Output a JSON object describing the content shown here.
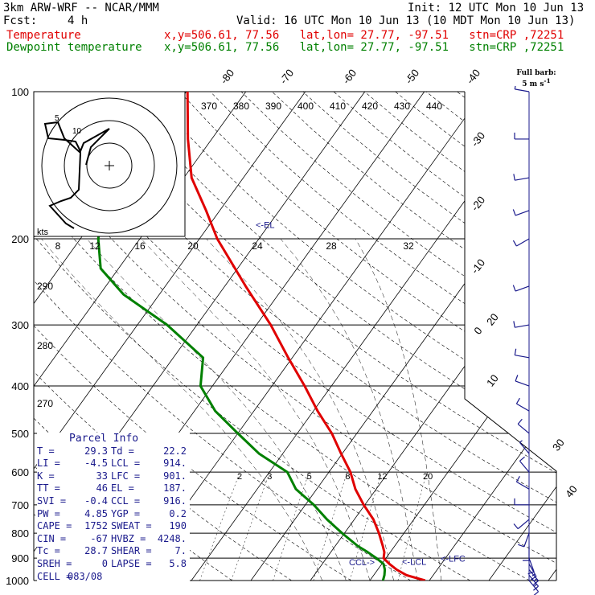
{
  "header": {
    "model": "3km ARW-WRF -- NCAR/MMM",
    "init": "Init: 12 UTC Mon 10 Jun 13",
    "fcst_label": "Fcst:",
    "fcst_value": "4 h",
    "valid": "Valid: 16 UTC Mon 10 Jun 13 (10 MDT Mon 10 Jun 13)",
    "temp_label": "Temperature",
    "temp_info": "x,y=506.61, 77.56   lat,lon= 27.77, -97.51   stn=CRP ,72251",
    "dew_label": "Dewpoint temperature",
    "dew_info": "x,y=506.61, 77.56   lat,lon= 27.77, -97.51   stn=CRP ,72251"
  },
  "full_barb": {
    "line1": "Full barb:",
    "line2": "5 m s",
    "sup": "-1"
  },
  "parcel": {
    "title": "Parcel Info",
    "rows": [
      [
        "T",
        "29.3",
        "Td",
        "22.2"
      ],
      [
        "LI",
        "-4.5",
        "LCL",
        "914."
      ],
      [
        "K",
        "33",
        "LFC",
        "901."
      ],
      [
        "TT",
        "46",
        "EL",
        "187."
      ],
      [
        "SVI",
        "-0.4",
        "CCL",
        "916."
      ],
      [
        "PW",
        "4.85",
        "YGP",
        "0.2"
      ],
      [
        "CAPE",
        "1752",
        "SWEAT",
        "190"
      ],
      [
        "CIN",
        "-67",
        "HVBZ",
        "4248."
      ],
      [
        "Tc",
        "28.7",
        "SHEAR",
        "7."
      ],
      [
        "SREH",
        "0",
        "LAPSE",
        "5.8"
      ],
      [
        "CELL",
        "083/08",
        "",
        ""
      ]
    ]
  },
  "chart_data": {
    "type": "line",
    "chart_kind": "skew-T log-P sounding",
    "y_scale": "log",
    "ylim": [
      1000,
      100
    ],
    "pressure_ticks": [
      100,
      200,
      300,
      400,
      500,
      600,
      700,
      800,
      900,
      1000
    ],
    "isotherm_labels": [
      -80,
      -70,
      -60,
      -50,
      -40,
      -30,
      -20,
      -10,
      0,
      10,
      20,
      30,
      40
    ],
    "theta_labels": [
      370,
      380,
      390,
      400,
      410,
      420,
      430,
      440
    ],
    "dry_adiabat_labels": [
      290,
      280,
      270
    ],
    "mixing_ratio_labels": [
      2,
      3,
      5,
      8,
      12,
      20
    ],
    "hodograph_kts_labels": [
      8,
      12,
      16,
      20,
      24,
      28,
      32
    ],
    "hodograph_ring_labels": [
      5,
      10
    ],
    "hodograph_kts_unit": "kts",
    "level_markers": [
      {
        "label": "<-EL",
        "p": 187
      },
      {
        "label": "CCL->",
        "p": 916
      },
      {
        "label": "<-LCL",
        "p": 914
      },
      {
        "label": "<-LFC",
        "p": 901
      }
    ],
    "series": [
      {
        "name": "Temperature",
        "color": "#e00000",
        "points": [
          [
            1000,
            29.3
          ],
          [
            975,
            25.5
          ],
          [
            950,
            23.2
          ],
          [
            925,
            21.3
          ],
          [
            900,
            19.6
          ],
          [
            875,
            19.0
          ],
          [
            850,
            18.0
          ],
          [
            800,
            15.8
          ],
          [
            750,
            13.2
          ],
          [
            700,
            9.8
          ],
          [
            650,
            6.5
          ],
          [
            600,
            3.6
          ],
          [
            550,
            -0.2
          ],
          [
            500,
            -4.2
          ],
          [
            450,
            -9.3
          ],
          [
            400,
            -14.5
          ],
          [
            350,
            -20.7
          ],
          [
            300,
            -27.6
          ],
          [
            250,
            -36.5
          ],
          [
            200,
            -47.0
          ],
          [
            175,
            -52.3
          ],
          [
            150,
            -58.7
          ],
          [
            125,
            -64.0
          ],
          [
            100,
            -69.8
          ]
        ]
      },
      {
        "name": "Dewpoint temperature",
        "color": "#008000",
        "points": [
          [
            1000,
            22.2
          ],
          [
            975,
            21.8
          ],
          [
            950,
            21.2
          ],
          [
            925,
            20.3
          ],
          [
            900,
            18.4
          ],
          [
            875,
            16.2
          ],
          [
            850,
            13.8
          ],
          [
            800,
            9.6
          ],
          [
            750,
            5.4
          ],
          [
            700,
            1.4
          ],
          [
            650,
            -3.5
          ],
          [
            600,
            -7.0
          ],
          [
            550,
            -14.0
          ],
          [
            500,
            -20.0
          ],
          [
            450,
            -26.5
          ],
          [
            400,
            -32.0
          ],
          [
            350,
            -35.0
          ],
          [
            300,
            -45.0
          ],
          [
            260,
            -56.0
          ],
          [
            230,
            -63.0
          ],
          [
            200,
            -67.0
          ],
          [
            150,
            -73.0
          ],
          [
            125,
            -78.0
          ],
          [
            100,
            -82.0
          ]
        ]
      }
    ],
    "wind_barbs": [
      {
        "p": 100,
        "dir": 280,
        "spd": 5
      },
      {
        "p": 125,
        "dir": 270,
        "spd": 10
      },
      {
        "p": 150,
        "dir": 260,
        "spd": 10
      },
      {
        "p": 175,
        "dir": 250,
        "spd": 10
      },
      {
        "p": 200,
        "dir": 240,
        "spd": 10
      },
      {
        "p": 250,
        "dir": 250,
        "spd": 10
      },
      {
        "p": 300,
        "dir": 260,
        "spd": 10
      },
      {
        "p": 350,
        "dir": 280,
        "spd": 10
      },
      {
        "p": 400,
        "dir": 290,
        "spd": 10
      },
      {
        "p": 450,
        "dir": 300,
        "spd": 10
      },
      {
        "p": 500,
        "dir": 310,
        "spd": 10
      },
      {
        "p": 550,
        "dir": 320,
        "spd": 5
      },
      {
        "p": 600,
        "dir": 320,
        "spd": 10
      },
      {
        "p": 650,
        "dir": 300,
        "spd": 10
      },
      {
        "p": 700,
        "dir": 270,
        "spd": 10
      },
      {
        "p": 750,
        "dir": 230,
        "spd": 10
      },
      {
        "p": 800,
        "dir": 200,
        "spd": 10
      },
      {
        "p": 850,
        "dir": 180,
        "spd": 10
      },
      {
        "p": 900,
        "dir": 160,
        "spd": 10
      },
      {
        "p": 925,
        "dir": 150,
        "spd": 15
      },
      {
        "p": 950,
        "dir": 140,
        "spd": 15
      },
      {
        "p": 975,
        "dir": 140,
        "spd": 15
      },
      {
        "p": 1000,
        "dir": 140,
        "spd": 10
      }
    ]
  }
}
